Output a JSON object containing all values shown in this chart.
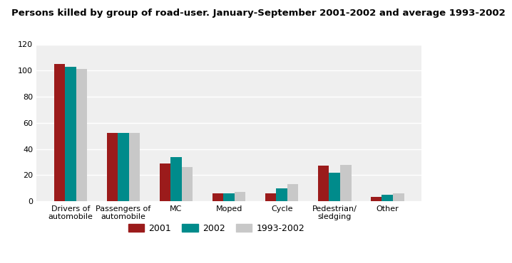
{
  "title": "Persons killed by group of road-user. January-September 2001-2002 and average 1993-2002",
  "categories": [
    "Drivers of\nautomobile",
    "Passengers of\nautomobile",
    "MC",
    "Moped",
    "Cycle",
    "Pedestrian/\nsledging",
    "Other"
  ],
  "series": {
    "2001": [
      105,
      52,
      29,
      6,
      6,
      27,
      3
    ],
    "2002": [
      103,
      52,
      34,
      6,
      10,
      22,
      5
    ],
    "1993-2002": [
      101,
      52,
      26,
      7,
      13,
      28,
      6
    ]
  },
  "colors": {
    "2001": "#9B1B1B",
    "2002": "#008B8B",
    "1993-2002": "#C8C8C8"
  },
  "ylim": [
    0,
    120
  ],
  "yticks": [
    0,
    20,
    40,
    60,
    80,
    100,
    120
  ],
  "background_color": "#FFFFFF",
  "plot_bg_color": "#EFEFEF",
  "grid_color": "#FFFFFF",
  "title_fontsize": 9.5,
  "title_color": "#000000",
  "separator_color": "#009090",
  "legend_labels": [
    "2001",
    "2002",
    "1993-2002"
  ],
  "bar_width": 0.21,
  "tick_fontsize": 8
}
